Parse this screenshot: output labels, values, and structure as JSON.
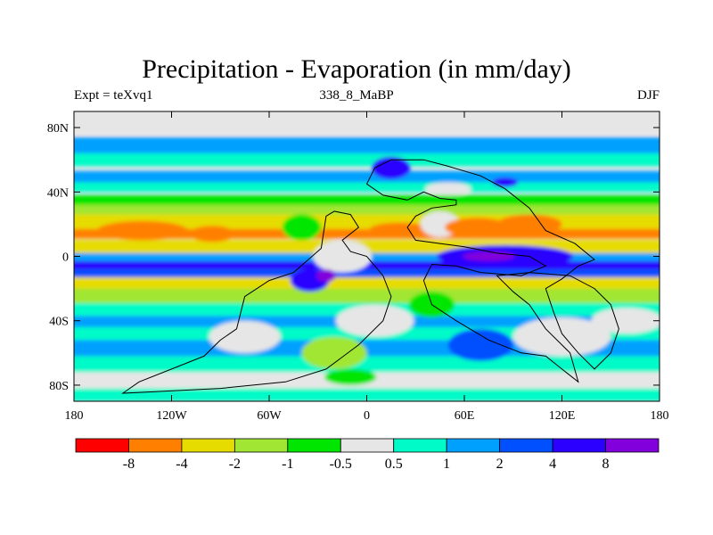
{
  "title": "Precipitation - Evaporation (in mm/day)",
  "experiment_label": "Expt = teXvq1",
  "period_label": "338_8_MaBP",
  "season_label": "DJF",
  "map": {
    "lon_range": [
      -180,
      180
    ],
    "lat_range": [
      -90,
      90
    ],
    "x_ticks": [
      {
        "value": -180,
        "label": "180"
      },
      {
        "value": -120,
        "label": "120W"
      },
      {
        "value": -60,
        "label": "60W"
      },
      {
        "value": 0,
        "label": "0"
      },
      {
        "value": 60,
        "label": "60E"
      },
      {
        "value": 120,
        "label": "120E"
      },
      {
        "value": 180,
        "label": "180"
      }
    ],
    "y_ticks": [
      {
        "value": 80,
        "label": "80N"
      },
      {
        "value": 40,
        "label": "40N"
      },
      {
        "value": 0,
        "label": "0"
      },
      {
        "value": -40,
        "label": "40S"
      },
      {
        "value": -80,
        "label": "80S"
      }
    ],
    "background_color": "#e6e6e6"
  },
  "colorbar": {
    "colors": [
      "#ff0000",
      "#ff8000",
      "#e6dc00",
      "#a0e632",
      "#00e600",
      "#e6e6e6",
      "#00fac8",
      "#00a0ff",
      "#0050ff",
      "#2c00ff",
      "#8200dc"
    ],
    "labels": [
      "-8",
      "-4",
      "-2",
      "-1",
      "-0.5",
      "0.5",
      "1",
      "2",
      "4",
      "8"
    ]
  },
  "bands": [
    {
      "lat": 82,
      "half_width": 6,
      "color": "#e6e6e6"
    },
    {
      "lat": 68,
      "half_width": 6,
      "color": "#00a0ff"
    },
    {
      "lat": 60,
      "half_width": 4,
      "color": "#00fac8"
    },
    {
      "lat": 49,
      "half_width": 4,
      "color": "#00a0ff"
    },
    {
      "lat": 43,
      "half_width": 3,
      "color": "#00fac8"
    },
    {
      "lat": 34,
      "half_width": 4,
      "color": "#00e600"
    },
    {
      "lat": 28,
      "half_width": 4,
      "color": "#a0e632"
    },
    {
      "lat": 21,
      "half_width": 5,
      "color": "#e6dc00"
    },
    {
      "lat": 14,
      "half_width": 3,
      "color": "#ff8000"
    },
    {
      "lat": 6,
      "half_width": 4,
      "color": "#e6dc00"
    },
    {
      "lat": -1,
      "half_width": 3,
      "color": "#00a0ff"
    },
    {
      "lat": -6,
      "half_width": 3,
      "color": "#2c00ff"
    },
    {
      "lat": -11,
      "half_width": 3,
      "color": "#0050ff"
    },
    {
      "lat": -17,
      "half_width": 4,
      "color": "#e6dc00"
    },
    {
      "lat": -25,
      "half_width": 5,
      "color": "#a0e632"
    },
    {
      "lat": -33,
      "half_width": 4,
      "color": "#00fac8"
    },
    {
      "lat": -41,
      "half_width": 4,
      "color": "#00a0ff"
    },
    {
      "lat": -48,
      "half_width": 4,
      "color": "#00fac8"
    },
    {
      "lat": -57,
      "half_width": 5,
      "color": "#00a0ff"
    },
    {
      "lat": -67,
      "half_width": 5,
      "color": "#00fac8"
    },
    {
      "lat": -78,
      "half_width": 6,
      "color": "#e6e6e6"
    },
    {
      "lat": -86,
      "half_width": 4,
      "color": "#00fac8"
    }
  ],
  "patches": [
    {
      "lon": -138,
      "lat": 16,
      "rx": 28,
      "ry": 6,
      "color": "#ff8000"
    },
    {
      "lon": -95,
      "lat": 14,
      "rx": 14,
      "ry": 5,
      "color": "#ff8000"
    },
    {
      "lon": -40,
      "lat": 18,
      "rx": 12,
      "ry": 8,
      "color": "#00e600"
    },
    {
      "lon": -15,
      "lat": 0,
      "rx": 18,
      "ry": 10,
      "color": "#e6e6e6"
    },
    {
      "lon": 20,
      "lat": 17,
      "rx": 18,
      "ry": 4,
      "color": "#ff8000"
    },
    {
      "lon": 45,
      "lat": 20,
      "rx": 12,
      "ry": 8,
      "color": "#e6e6e6"
    },
    {
      "lon": 68,
      "lat": 18,
      "rx": 20,
      "ry": 6,
      "color": "#ff8000"
    },
    {
      "lon": 100,
      "lat": 20,
      "rx": 20,
      "ry": 6,
      "color": "#ff8000"
    },
    {
      "lon": 85,
      "lat": 0,
      "rx": 42,
      "ry": 7,
      "color": "#2c00ff"
    },
    {
      "lon": 75,
      "lat": 0,
      "rx": 16,
      "ry": 3,
      "color": "#8200dc"
    },
    {
      "lon": 15,
      "lat": 55,
      "rx": 12,
      "ry": 7,
      "color": "#2c00ff"
    },
    {
      "lon": 85,
      "lat": 46,
      "rx": 8,
      "ry": 3,
      "color": "#2c00ff"
    },
    {
      "lon": 50,
      "lat": 42,
      "rx": 14,
      "ry": 4,
      "color": "#e6e6e6"
    },
    {
      "lon": -35,
      "lat": -15,
      "rx": 12,
      "ry": 7,
      "color": "#2c00ff"
    },
    {
      "lon": -25,
      "lat": -12,
      "rx": 6,
      "ry": 4,
      "color": "#8200dc"
    },
    {
      "lon": 5,
      "lat": -40,
      "rx": 24,
      "ry": 10,
      "color": "#e6e6e6"
    },
    {
      "lon": -20,
      "lat": -60,
      "rx": 20,
      "ry": 10,
      "color": "#a0e632"
    },
    {
      "lon": -10,
      "lat": -75,
      "rx": 16,
      "ry": 5,
      "color": "#00e600"
    },
    {
      "lon": -75,
      "lat": -50,
      "rx": 22,
      "ry": 10,
      "color": "#e6e6e6"
    },
    {
      "lon": 120,
      "lat": -50,
      "rx": 30,
      "ry": 12,
      "color": "#e6e6e6"
    },
    {
      "lon": 70,
      "lat": -55,
      "rx": 20,
      "ry": 10,
      "color": "#0050ff"
    },
    {
      "lon": 160,
      "lat": -40,
      "rx": 22,
      "ry": 8,
      "color": "#e6e6e6"
    },
    {
      "lon": 40,
      "lat": -30,
      "rx": 14,
      "ry": 8,
      "color": "#00e600"
    }
  ],
  "outlines": [
    [
      [
        -150,
        -85
      ],
      [
        -140,
        -78
      ],
      [
        -120,
        -70
      ],
      [
        -100,
        -62
      ],
      [
        -90,
        -52
      ],
      [
        -80,
        -45
      ],
      [
        -75,
        -25
      ],
      [
        -60,
        -15
      ],
      [
        -45,
        -10
      ],
      [
        -28,
        5
      ],
      [
        -25,
        25
      ],
      [
        -20,
        28
      ],
      [
        -10,
        26
      ],
      [
        -5,
        18
      ],
      [
        -15,
        10
      ],
      [
        -10,
        3
      ],
      [
        0,
        0
      ],
      [
        10,
        -12
      ],
      [
        15,
        -25
      ],
      [
        10,
        -40
      ],
      [
        -5,
        -55
      ],
      [
        -25,
        -70
      ],
      [
        -50,
        -78
      ],
      [
        -90,
        -82
      ],
      [
        -130,
        -84
      ],
      [
        -150,
        -85
      ]
    ],
    [
      [
        15,
        60
      ],
      [
        5,
        55
      ],
      [
        0,
        45
      ],
      [
        10,
        38
      ],
      [
        25,
        35
      ],
      [
        35,
        40
      ],
      [
        45,
        36
      ],
      [
        55,
        35
      ],
      [
        55,
        32
      ],
      [
        40,
        30
      ],
      [
        30,
        25
      ],
      [
        25,
        18
      ],
      [
        30,
        10
      ],
      [
        45,
        8
      ],
      [
        60,
        6
      ],
      [
        80,
        2
      ],
      [
        100,
        0
      ],
      [
        110,
        -6
      ],
      [
        95,
        -12
      ],
      [
        70,
        -10
      ],
      [
        55,
        -6
      ],
      [
        40,
        -5
      ],
      [
        35,
        -15
      ],
      [
        40,
        -30
      ],
      [
        55,
        -40
      ],
      [
        75,
        -52
      ],
      [
        95,
        -60
      ],
      [
        110,
        -62
      ],
      [
        120,
        -70
      ],
      [
        130,
        -78
      ],
      [
        125,
        -60
      ],
      [
        110,
        -45
      ],
      [
        100,
        -30
      ],
      [
        90,
        -22
      ],
      [
        80,
        -12
      ],
      [
        100,
        -10
      ],
      [
        125,
        -12
      ],
      [
        140,
        -20
      ],
      [
        150,
        -30
      ],
      [
        155,
        -45
      ],
      [
        150,
        -60
      ],
      [
        140,
        -70
      ],
      [
        130,
        -60
      ],
      [
        120,
        -48
      ],
      [
        115,
        -35
      ],
      [
        110,
        -20
      ],
      [
        120,
        -14
      ],
      [
        130,
        -6
      ],
      [
        140,
        -2
      ],
      [
        128,
        8
      ],
      [
        110,
        16
      ],
      [
        100,
        30
      ],
      [
        85,
        42
      ],
      [
        70,
        50
      ],
      [
        50,
        56
      ],
      [
        35,
        60
      ],
      [
        15,
        60
      ]
    ]
  ]
}
